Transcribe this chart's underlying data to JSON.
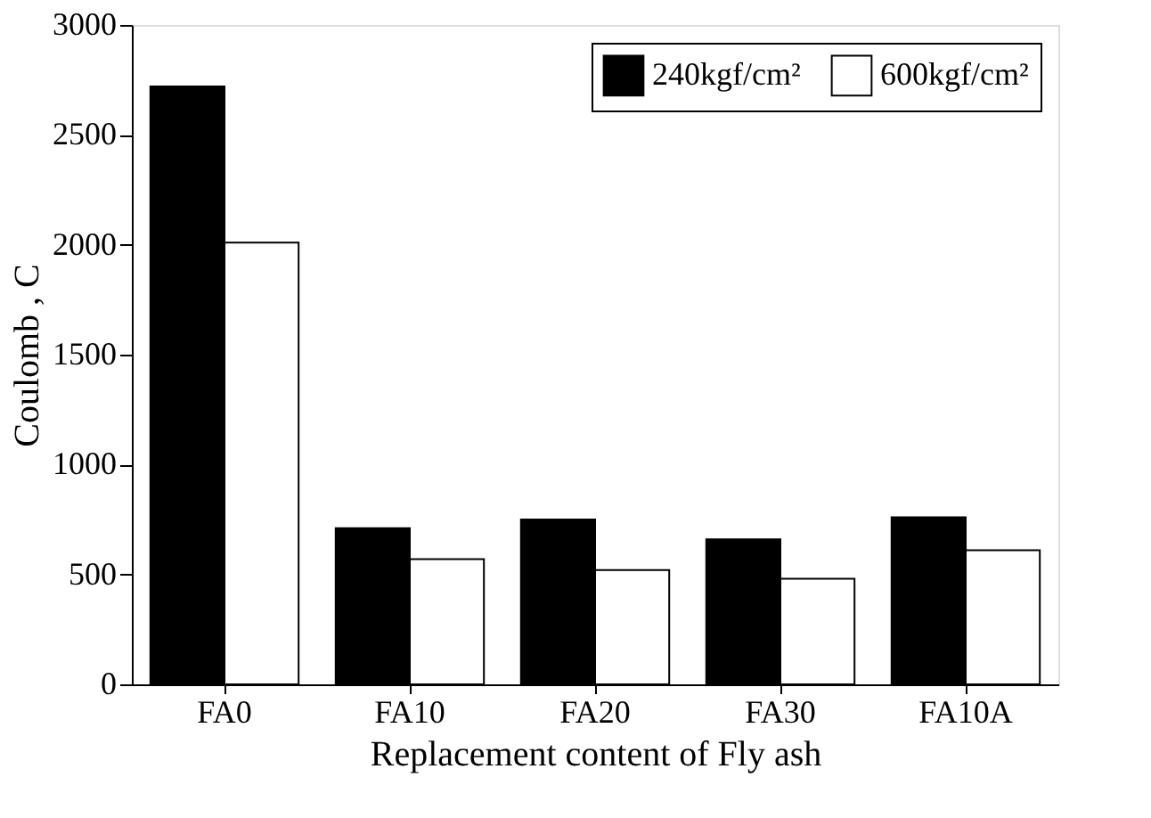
{
  "chart_data": {
    "type": "bar",
    "xlabel": "Replacement content of Fly ash",
    "ylabel": "Coulomb , C",
    "categories": [
      "FA0",
      "FA10",
      "FA20",
      "FA30",
      "FA10A"
    ],
    "series": [
      {
        "name": "240kgf/cm²",
        "color": "#000000",
        "values": [
          2720,
          710,
          750,
          660,
          760
        ]
      },
      {
        "name": "600kgf/cm²",
        "color": "#ffffff",
        "values": [
          2010,
          570,
          520,
          480,
          610
        ]
      }
    ],
    "ylim": [
      0,
      3000
    ],
    "yticks": [
      0,
      500,
      1000,
      1500,
      2000,
      2500,
      3000
    ],
    "grid": false,
    "legend": "top right"
  }
}
